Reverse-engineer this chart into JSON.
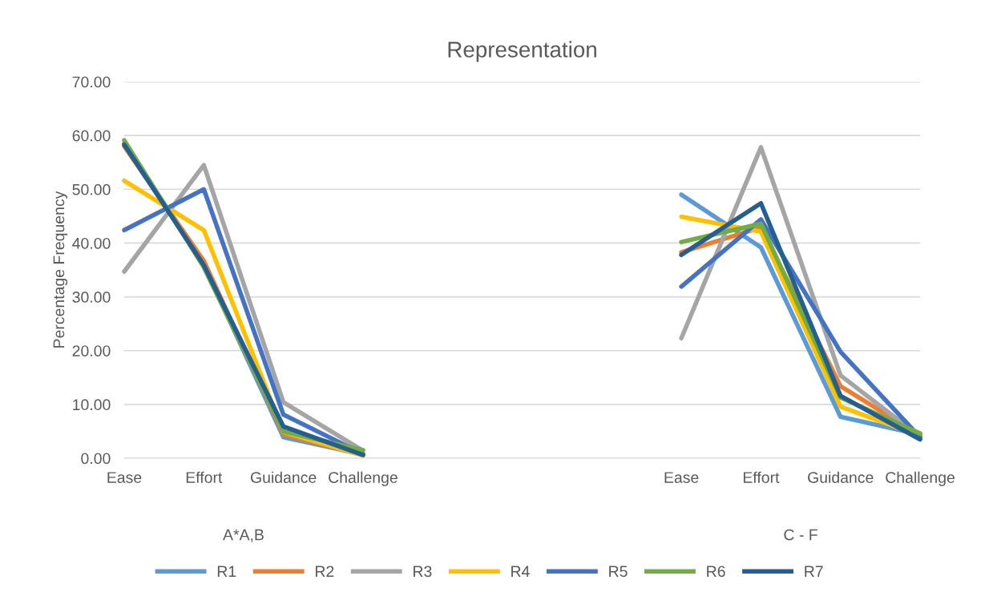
{
  "chart_data": {
    "type": "line",
    "title": "Representation",
    "ylabel": "Percentage Frequency",
    "categories": [
      "Ease",
      "Effort",
      "Guidance",
      "Challenge",
      null,
      null,
      null,
      "Ease",
      "Effort",
      "Guidance",
      "Challenge"
    ],
    "annotations": [
      "A*A,B",
      "C - F"
    ],
    "series": [
      {
        "name": "R1",
        "color": "#5b9bd5",
        "values": [
          58.5,
          36.0,
          3.9,
          0.7,
          null,
          null,
          null,
          49.0,
          39.2,
          7.7,
          4.4
        ]
      },
      {
        "name": "R2",
        "color": "#ed7d31",
        "values": [
          58.0,
          36.7,
          4.5,
          0.6,
          null,
          null,
          null,
          38.3,
          42.9,
          13.4,
          4.3
        ]
      },
      {
        "name": "R3",
        "color": "#a5a5a5",
        "values": [
          34.7,
          54.5,
          10.4,
          1.4,
          null,
          null,
          null,
          22.3,
          57.8,
          15.4,
          4.0
        ]
      },
      {
        "name": "R4",
        "color": "#ffc000",
        "values": [
          51.6,
          42.4,
          4.9,
          0.5,
          null,
          null,
          null,
          44.9,
          42.1,
          9.6,
          4.2
        ]
      },
      {
        "name": "R5",
        "color": "#4472c4",
        "values": [
          42.4,
          50.0,
          8.1,
          0.8,
          null,
          null,
          null,
          31.9,
          44.4,
          19.8,
          3.9
        ]
      },
      {
        "name": "R6",
        "color": "#70ad47",
        "values": [
          59.1,
          35.5,
          5.0,
          1.5,
          null,
          null,
          null,
          40.2,
          43.6,
          11.3,
          4.6
        ]
      },
      {
        "name": "R7",
        "color": "#255e91",
        "values": [
          58.3,
          35.9,
          5.9,
          0.6,
          null,
          null,
          null,
          37.8,
          47.4,
          11.6,
          3.5
        ]
      }
    ],
    "ylim": [
      0,
      70
    ],
    "yticks": [
      {
        "value": 0,
        "label": "0.00"
      },
      {
        "value": 10,
        "label": "10.00"
      },
      {
        "value": 20,
        "label": "20.00"
      },
      {
        "value": 30,
        "label": "30.00"
      },
      {
        "value": 40,
        "label": "40.00"
      },
      {
        "value": 50,
        "label": "50.00"
      },
      {
        "value": 60,
        "label": "60.00"
      },
      {
        "value": 70,
        "label": "70.00"
      }
    ],
    "grid": "y",
    "legend": "bottom",
    "marker": "none",
    "line_style": "solid"
  }
}
